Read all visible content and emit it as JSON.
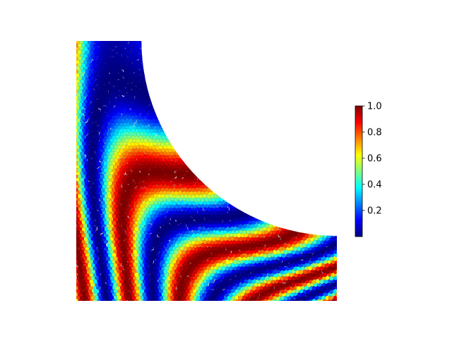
{
  "chart_data": {
    "type": "heatmap",
    "title": "",
    "xlabel": "",
    "ylabel": "",
    "axes_visible": false,
    "domain": {
      "shape": "square with circular cutout at top-right corner",
      "x_range": [
        0,
        1
      ],
      "y_range": [
        0,
        1
      ],
      "cutout_center": [
        1,
        1
      ],
      "cutout_radius": 0.75
    },
    "field": {
      "description": "oscillating stripe pattern of cell values, roughly vertical bands bending toward the cutout",
      "value_range": [
        0,
        1
      ]
    },
    "colormap": {
      "name": "jet",
      "stops": [
        "#00007f",
        "#0000ff",
        "#007fff",
        "#00ffff",
        "#7fff7f",
        "#ffff00",
        "#ff7f00",
        "#ff0000",
        "#7f0000"
      ]
    },
    "colorbar": {
      "placement": "right",
      "range": [
        0,
        1
      ],
      "ticks": [
        0.2,
        0.4,
        0.6,
        0.8,
        1.0
      ],
      "tick_labels": [
        "0.2",
        "0.4",
        "0.6",
        "0.8",
        "1.0"
      ]
    }
  }
}
